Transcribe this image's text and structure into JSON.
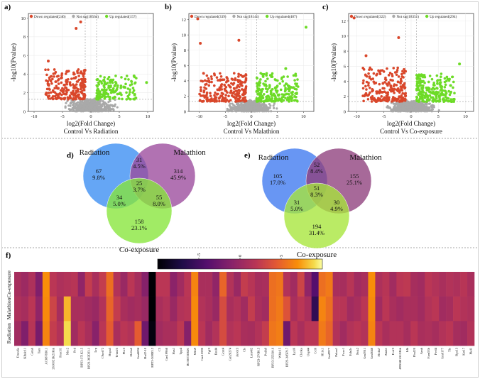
{
  "panel_labels": [
    "a)",
    "b)",
    "c)",
    "d)",
    "e)",
    "f)"
  ],
  "colors": {
    "down": "#d9472b",
    "notsig": "#a9a9a9",
    "up": "#6ddb27",
    "radiation": "#3a8df2",
    "malathion": "#9b3f96",
    "coexposure": "#7fe52e"
  },
  "chart_data": [
    {
      "type": "scatter",
      "panel": "a)",
      "title": "Control Vs Radiation",
      "xlabel": "log2(Fold Change)",
      "ylabel": "-log10(Pvalue)",
      "xlim": [
        -11,
        11
      ],
      "ylim": [
        0,
        10.5
      ],
      "xticks": [
        -10,
        -5,
        0,
        5,
        10
      ],
      "yticks": [
        0,
        2,
        4,
        6,
        8,
        10
      ],
      "legend": {
        "down": "Down regulated(246)",
        "notsig": "Not sig(18564)",
        "up": "Up regulated(157)"
      },
      "counts": {
        "down": 246,
        "notsig": 18564,
        "up": 157
      },
      "thresholds": {
        "fc": 1,
        "p": 1.3
      },
      "highlight_points": [
        {
          "x": -2.6,
          "y": 8.9,
          "group": "down"
        },
        {
          "x": -1.8,
          "y": 9.6,
          "group": "down"
        },
        {
          "x": -7.5,
          "y": 5.4,
          "group": "down"
        },
        {
          "x": -4.2,
          "y": 4.3,
          "group": "down"
        },
        {
          "x": 9.8,
          "y": 3.1,
          "group": "up"
        },
        {
          "x": 7.6,
          "y": 3.8,
          "group": "up"
        }
      ],
      "spread": {
        "down_x": [
          -8,
          -1
        ],
        "down_ymax": 4.5,
        "up_x": [
          1,
          8
        ],
        "up_ymax": 3.9
      }
    },
    {
      "type": "scatter",
      "panel": "b)",
      "title": "Control Vs Malathion",
      "xlabel": "log2(Fold Change)",
      "ylabel": "-log10(Pvalue)",
      "xlim": [
        -12,
        12
      ],
      "ylim": [
        0,
        12.8
      ],
      "xticks": [
        -10,
        -5,
        0,
        5,
        10
      ],
      "yticks": [
        0,
        2,
        4,
        6,
        8,
        10,
        12
      ],
      "legend": {
        "down": "Down regulated(339)",
        "notsig": "Not sig(18141)",
        "up": "Up regulated(487)"
      },
      "counts": {
        "down": 339,
        "notsig": 18141,
        "up": 487
      },
      "thresholds": {
        "fc": 1,
        "p": 1.3
      },
      "highlight_points": [
        {
          "x": -10.3,
          "y": 12.1,
          "group": "down"
        },
        {
          "x": -9.8,
          "y": 8.9,
          "group": "down"
        },
        {
          "x": -2.4,
          "y": 9.3,
          "group": "down"
        },
        {
          "x": 10.5,
          "y": 11.0,
          "group": "up"
        },
        {
          "x": 6.6,
          "y": 5.6,
          "group": "up"
        }
      ],
      "spread": {
        "down_x": [
          -10,
          -1
        ],
        "down_ymax": 5.0,
        "up_x": [
          1,
          9
        ],
        "up_ymax": 5.0
      }
    },
    {
      "type": "scatter",
      "panel": "c)",
      "title": "Control Vs Co-exposure",
      "xlabel": "log2(Fold Change)",
      "ylabel": "-log10(Pvalue)",
      "xlim": [
        -11.5,
        11.5
      ],
      "ylim": [
        0,
        13
      ],
      "xticks": [
        -10,
        -5,
        0,
        5,
        10
      ],
      "yticks": [
        0,
        2,
        4,
        6,
        8,
        10,
        12
      ],
      "legend": {
        "down": "Down regulated(322)",
        "notsig": "Not sig(18351)",
        "up": "Up regulated(294)"
      },
      "counts": {
        "down": 322,
        "notsig": 18351,
        "up": 294
      },
      "thresholds": {
        "fc": 1,
        "p": 1.3
      },
      "highlight_points": [
        {
          "x": -10.5,
          "y": 12.4,
          "group": "down"
        },
        {
          "x": -2.3,
          "y": 9.8,
          "group": "down"
        },
        {
          "x": -8.3,
          "y": 7.4,
          "group": "down"
        },
        {
          "x": 8.9,
          "y": 6.3,
          "group": "up"
        }
      ],
      "spread": {
        "down_x": [
          -9,
          -1
        ],
        "down_ymax": 5.8,
        "up_x": [
          1,
          8
        ],
        "up_ymax": 5.0
      }
    },
    {
      "type": "venn",
      "panel": "d)",
      "sets": [
        "Radiation",
        "Malathion",
        "Co-exposure"
      ],
      "regions": [
        {
          "key": "R",
          "count": "67",
          "pct": "9.8%"
        },
        {
          "key": "RM",
          "count": "31",
          "pct": "4.5%"
        },
        {
          "key": "M",
          "count": "314",
          "pct": "45.9%"
        },
        {
          "key": "RMC",
          "count": "25",
          "pct": "3.7%"
        },
        {
          "key": "RC",
          "count": "34",
          "pct": "5.0%"
        },
        {
          "key": "MC",
          "count": "55",
          "pct": "8.0%"
        },
        {
          "key": "C",
          "count": "158",
          "pct": "23.1%"
        }
      ]
    },
    {
      "type": "venn",
      "panel": "e)",
      "sets": [
        "Radiation",
        "Malathion",
        "Co-exposure"
      ],
      "regions": [
        {
          "key": "R",
          "count": "105",
          "pct": "17.0%"
        },
        {
          "key": "RM",
          "count": "52",
          "pct": "8.4%"
        },
        {
          "key": "M",
          "count": "155",
          "pct": "25.1%"
        },
        {
          "key": "RMC",
          "count": "51",
          "pct": "8.3%"
        },
        {
          "key": "RC",
          "count": "31",
          "pct": "5.0%"
        },
        {
          "key": "MC",
          "count": "30",
          "pct": "4.9%"
        },
        {
          "key": "C",
          "count": "194",
          "pct": "31.4%"
        }
      ]
    },
    {
      "type": "heatmap",
      "panel": "f)",
      "rows": [
        "Co-exposure",
        "Malathion",
        "Radiation"
      ],
      "columns": [
        "Fmodia",
        "Klhdc11",
        "Gstab",
        "Tanr",
        "AC087830.1",
        "2610021K21Rik",
        "Fras1l1",
        "Mrc2",
        "Pcd",
        "RP23-371K2.5",
        "RP23-382D23.1",
        "Lrp",
        "C9orf72",
        "Hspa5",
        "Trim25",
        "Pbc3",
        "Slc6a6",
        "Gm4694",
        "Hsd2-10",
        "RP23-369D3.2",
        "C5",
        "Gm19968",
        "Has1",
        "Tpp4",
        "BC067203D1",
        "Mfn9",
        "Gm15590",
        "Fgf3",
        "Rnd4",
        "Gcnt4",
        "Gm26274",
        "Arrdc3",
        "Cls",
        "Lrrn4l2",
        "RP23-276I8.5",
        "Pcdh9",
        "RP23-255I10.6",
        "Wfdc15",
        "RP23-345F9.7",
        "Lyzl6",
        "Clcnka",
        "Usp44",
        "Ccl6",
        "H1fx1",
        "Gm9977",
        "Prkaa1",
        "Foxc1",
        "Edn2r",
        "Nck2",
        "Gm3911",
        "Gm5048",
        "Slc4a7",
        "Ahdi1",
        "Fcsf3",
        "4930481A15Rik",
        "Idh",
        "Fbxl20",
        "Amh",
        "Fam53b",
        "Pvrl4",
        "Gm6177",
        "Tle",
        "Rps13",
        "Krt17",
        "Pkd1"
      ],
      "colorbar": {
        "ticks": [
          -5,
          0,
          5
        ],
        "range": [
          -10,
          10
        ]
      },
      "row_values": [
        [
          0.8,
          0.2,
          1.2,
          -1.5,
          7.0,
          2.0,
          1.2,
          1.5,
          1.8,
          -0.5,
          2.5,
          1.0,
          2.5,
          5.5,
          1.5,
          0.0,
          2.0,
          0.8,
          -1.2,
          -10.0,
          2.0,
          2.0,
          -0.8,
          0.5,
          2.0,
          6.5,
          1.0,
          1.0,
          -0.5,
          5.0,
          1.5,
          0.0,
          2.5,
          1.8,
          0.8,
          1.0,
          5.5,
          5.8,
          1.5,
          0.5,
          3.0,
          -0.5,
          -4.0,
          5.5,
          6.0,
          1.0,
          0.8,
          1.8,
          0.5,
          1.0,
          7.0,
          1.2,
          1.8,
          0.5,
          2.0,
          2.2,
          0.8,
          0.5,
          2.0,
          1.5,
          1.0,
          1.5,
          1.2,
          1.8,
          1.0
        ],
        [
          1.2,
          0.8,
          2.0,
          -0.5,
          6.8,
          3.0,
          0.8,
          8.0,
          1.0,
          1.0,
          0.5,
          0.0,
          1.5,
          5.0,
          2.5,
          1.0,
          0.5,
          0.8,
          0.0,
          -10.0,
          1.0,
          1.5,
          0.0,
          1.5,
          1.8,
          6.8,
          1.5,
          1.0,
          0.0,
          3.5,
          1.0,
          1.5,
          0.5,
          2.5,
          1.0,
          0.5,
          5.5,
          6.0,
          4.0,
          1.0,
          2.0,
          1.0,
          -6.0,
          6.5,
          5.5,
          2.0,
          1.8,
          0.5,
          1.0,
          2.0,
          6.8,
          0.5,
          2.0,
          1.0,
          0.5,
          1.0,
          1.0,
          0.5,
          1.5,
          2.0,
          0.5,
          0.8,
          2.0,
          1.5,
          1.2
        ],
        [
          0.5,
          -1.5,
          1.8,
          -2.0,
          6.5,
          2.5,
          1.5,
          9.0,
          0.5,
          2.0,
          1.0,
          -1.0,
          2.0,
          4.5,
          1.0,
          2.0,
          1.5,
          4.5,
          -2.5,
          -9.5,
          0.5,
          1.0,
          1.0,
          2.2,
          -1.2,
          6.8,
          2.0,
          0.5,
          1.5,
          3.5,
          1.5,
          2.0,
          1.0,
          0.8,
          1.5,
          2.5,
          5.8,
          6.2,
          -2.5,
          2.0,
          1.0,
          2.0,
          2.0,
          6.0,
          5.0,
          1.5,
          0.5,
          1.5,
          2.0,
          1.5,
          6.5,
          2.0,
          1.0,
          1.5,
          1.5,
          0.8,
          2.0,
          1.0,
          1.2,
          0.8,
          1.5,
          2.0,
          0.8,
          0.5,
          1.5
        ]
      ]
    }
  ]
}
